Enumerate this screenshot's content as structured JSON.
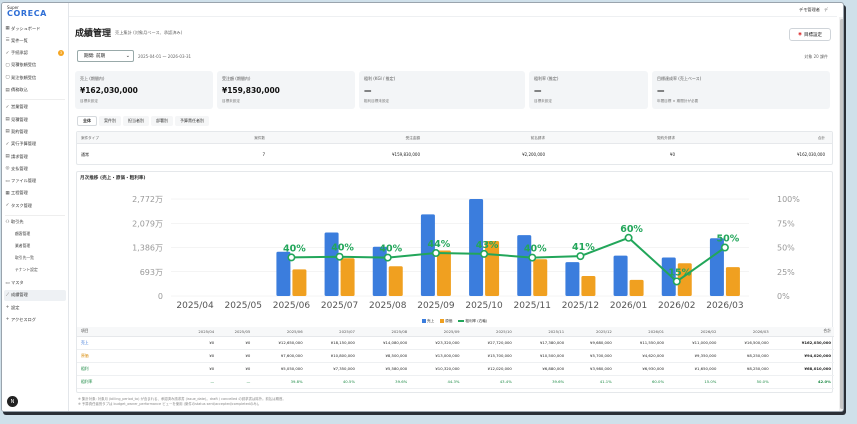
{
  "app": {
    "logo_super": "Super",
    "logo": "CORECA"
  },
  "sidebar": {
    "items": [
      {
        "icon": "dashboard-icon",
        "glyph": "▦",
        "label": "ダッシュボード"
      },
      {
        "icon": "list-icon",
        "glyph": "☰",
        "label": "案件一覧"
      },
      {
        "icon": "check-icon",
        "glyph": "✓",
        "label": "手続承認",
        "badge": "3"
      },
      {
        "icon": "inbox-icon",
        "glyph": "▢",
        "label": "見積依頼受信"
      },
      {
        "icon": "inbox-icon",
        "glyph": "▢",
        "label": "発注依頼受信"
      },
      {
        "icon": "document-icon",
        "glyph": "▤",
        "label": "債務取込"
      },
      {
        "icon": "check-icon",
        "glyph": "✓",
        "label": "営業管理"
      },
      {
        "icon": "document-icon",
        "glyph": "▤",
        "label": "見積管理"
      },
      {
        "icon": "document-icon",
        "glyph": "▤",
        "label": "契約管理"
      },
      {
        "icon": "check-icon",
        "glyph": "✓",
        "label": "実行予算管理"
      },
      {
        "icon": "document-icon",
        "glyph": "▤",
        "label": "請求管理"
      },
      {
        "icon": "money-icon",
        "glyph": "◎",
        "label": "支払管理"
      },
      {
        "icon": "folder-icon",
        "glyph": "▭",
        "label": "ファイル管理"
      },
      {
        "icon": "grid-icon",
        "glyph": "▦",
        "label": "工程管理"
      },
      {
        "icon": "check-icon",
        "glyph": "✓",
        "label": "タスク管理"
      }
    ],
    "section": {
      "icon": "users-icon",
      "glyph": "⚇",
      "label": "取引先"
    },
    "sub_items": [
      "顧客管理",
      "業者管理",
      "取引先一覧",
      "テナント設定"
    ],
    "bottom": [
      {
        "icon": "master-icon",
        "glyph": "▭",
        "label": "マスタ"
      },
      {
        "icon": "chart-icon",
        "glyph": "⟋",
        "label": "成績管理",
        "active": true
      },
      {
        "icon": "plus-icon",
        "glyph": "+",
        "label": "設定"
      },
      {
        "icon": "plus-icon",
        "glyph": "+",
        "label": "アクセスログ"
      }
    ],
    "avatar": "N"
  },
  "header": {
    "user": "デモ管理者",
    "user_initial": "デ"
  },
  "page": {
    "title": "成績管理",
    "subtitle": "売上集計 (対象月ベース、承認済み)",
    "goal_button": "目標設定",
    "period_select": "期間: 前期",
    "date_range": "2025-04-01 〜 2026-03-31",
    "count_label": "対象 20 課件"
  },
  "kpis": [
    {
      "label": "売上 (期間内)",
      "value": "¥162,030,000",
      "sub": "目標未設定"
    },
    {
      "label": "受注額 (期間内)",
      "value": "¥159,830,000",
      "sub": "目標未設定"
    },
    {
      "label": "粗利 (KGI / 推定)",
      "value": "—",
      "sub": "粗利目標未設定"
    },
    {
      "label": "粗利率 (推定)",
      "value": "—",
      "sub": "目標未設定"
    },
    {
      "label": "目標達成率 (売上ベース)",
      "value": "—",
      "sub": "年間目標 × 期間計が必要"
    }
  ],
  "tabs": [
    "全体",
    "案件別",
    "担当者別",
    "部署別",
    "予算責任者別"
  ],
  "summary": {
    "headers": [
      "案件タイプ",
      "案件数",
      "受注金額",
      "前払請求",
      "契約外請求",
      "合計"
    ],
    "row": [
      "通常",
      "7",
      "¥159,830,000",
      "¥2,200,000",
      "¥0",
      "¥162,030,000"
    ]
  },
  "chart_data": {
    "title": "月次推移 (売上・原価・粗利率)",
    "type": "bar",
    "categories": [
      "2025/04",
      "2025/05",
      "2025/06",
      "2025/07",
      "2025/08",
      "2025/09",
      "2025/10",
      "2025/11",
      "2025/12",
      "2026/01",
      "2026/02",
      "2026/03"
    ],
    "y_left_ticks": [
      "0",
      "693万",
      "1,386万",
      "2,079万",
      "2,772万"
    ],
    "y_left_max": 27720000,
    "y_right_ticks": [
      "0%",
      "25%",
      "50%",
      "75%",
      "100%"
    ],
    "series": [
      {
        "name": "売上",
        "color": "#3b7ddd",
        "values": [
          0,
          0,
          12650000,
          18150000,
          14080000,
          23320000,
          27720000,
          17380000,
          9680000,
          11550000,
          11000000,
          16500000
        ]
      },
      {
        "name": "原価",
        "color": "#f0a020",
        "values": [
          0,
          0,
          7600000,
          10800000,
          8500000,
          13000000,
          15700000,
          10500000,
          5700000,
          4620000,
          9350000,
          8250000
        ]
      },
      {
        "name": "粗利率 (右軸)",
        "color": "#22a65a",
        "values": [
          null,
          null,
          39.8,
          40.5,
          39.6,
          44.3,
          43.4,
          39.6,
          41.1,
          60.0,
          15.0,
          50.0
        ]
      }
    ],
    "point_labels": [
      "",
      "",
      "40%",
      "40%",
      "40%",
      "44%",
      "43%",
      "40%",
      "41%",
      "60%",
      "15%",
      "50%"
    ]
  },
  "month_table": {
    "headers": [
      "項目",
      "2025/04",
      "2025/05",
      "2025/06",
      "2025/07",
      "2025/08",
      "2025/09",
      "2025/10",
      "2025/11",
      "2025/12",
      "2026/01",
      "2026/02",
      "2026/03",
      "合計"
    ],
    "rows": [
      {
        "label": "売上",
        "cls": "sales",
        "values": [
          "¥0",
          "¥0",
          "¥12,650,000",
          "¥18,150,000",
          "¥14,080,000",
          "¥23,320,000",
          "¥27,720,000",
          "¥17,380,000",
          "¥9,680,000",
          "¥11,550,000",
          "¥11,000,000",
          "¥16,500,000",
          "¥162,030,000"
        ]
      },
      {
        "label": "原価",
        "cls": "cost",
        "values": [
          "¥0",
          "¥0",
          "¥7,600,000",
          "¥10,800,000",
          "¥8,500,000",
          "¥13,000,000",
          "¥15,700,000",
          "¥10,500,000",
          "¥5,700,000",
          "¥4,620,000",
          "¥9,350,000",
          "¥8,250,000",
          "¥94,020,000"
        ]
      },
      {
        "label": "粗利",
        "cls": "profit",
        "values": [
          "¥0",
          "¥0",
          "¥5,050,000",
          "¥7,350,000",
          "¥5,580,000",
          "¥10,320,000",
          "¥12,020,000",
          "¥6,880,000",
          "¥3,980,000",
          "¥6,930,000",
          "¥1,650,000",
          "¥8,250,000",
          "¥68,010,000"
        ]
      },
      {
        "label": "粗利率",
        "cls": "rate",
        "values": [
          "—",
          "—",
          "39.8%",
          "40.5%",
          "39.6%",
          "44.3%",
          "43.4%",
          "39.6%",
          "41.1%",
          "60.0%",
          "15.0%",
          "50.0%",
          "42.0%"
        ]
      }
    ]
  },
  "footnotes": [
    "※ 集計対象: 対象月 (billing_period_to) が含まれる、承認済み請求書 (issue_date)。draft / cancelled の請求書は除外。前払は期首。",
    "※ 予算責任者別タブは budget_owner_performance ビューを使用 (案件のstatus sent/accepted/completedのみ)。"
  ]
}
